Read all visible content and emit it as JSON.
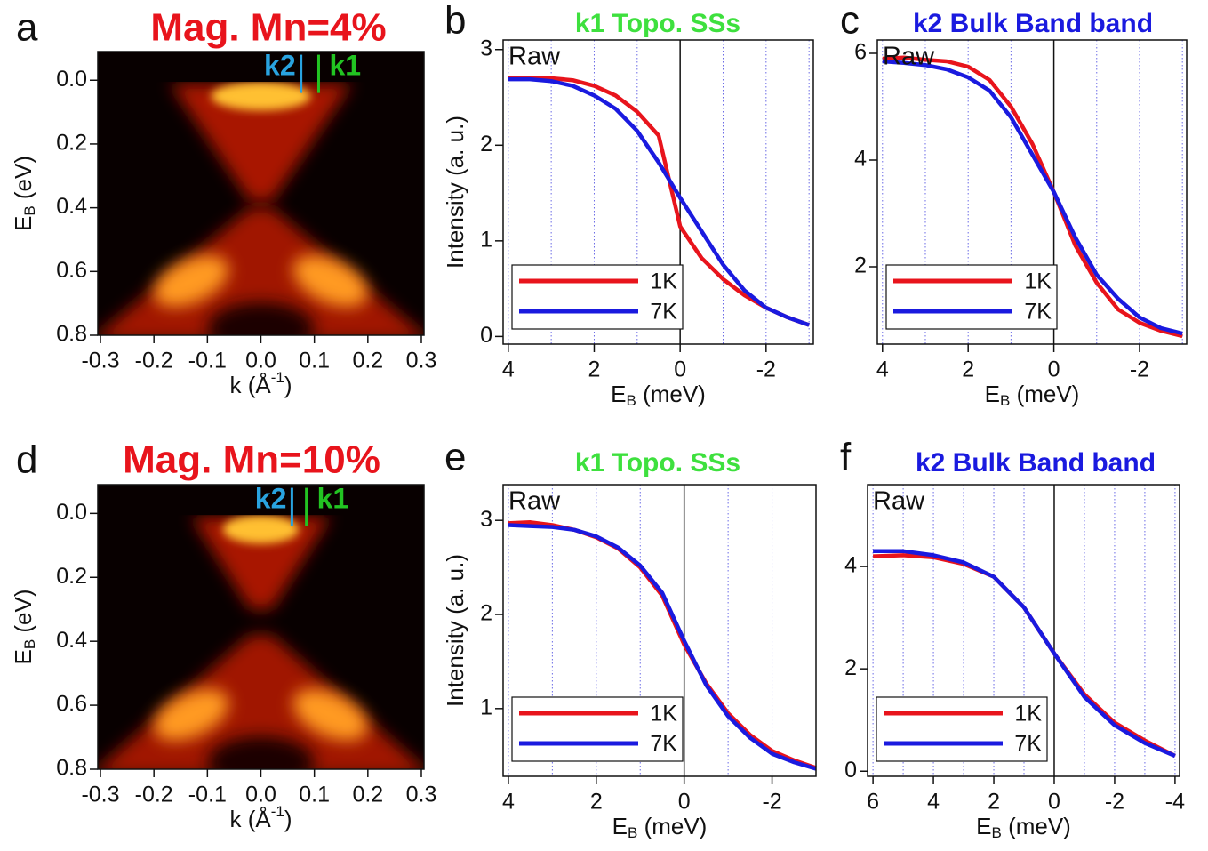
{
  "chart_data": [
    {
      "type": "heatmap",
      "panel": "a",
      "title": "Mag. Mn=4%",
      "title_color": "#e8141c",
      "xlabel_parts": [
        "k (Å",
        "-1",
        ")"
      ],
      "xlabel_script": "sup",
      "ylabel_parts": [
        "E",
        "B",
        " (eV)"
      ],
      "ylabel_script": "sub",
      "xlim": [
        -0.305,
        0.305
      ],
      "ylim": [
        0.8,
        -0.09
      ],
      "xticks": [
        -0.3,
        -0.2,
        -0.1,
        {
          "value": 0,
          "label": "0.0"
        },
        0.1,
        0.2,
        0.3
      ],
      "yticks": [
        {
          "value": 0,
          "label": "0.0"
        },
        0.2,
        0.4,
        0.6,
        0.8
      ],
      "markers": [
        {
          "name": "k2",
          "x": 0.075,
          "color": "#29a3e0"
        },
        {
          "name": "k1",
          "x": 0.108,
          "color": "#22c422"
        }
      ]
    },
    {
      "type": "line",
      "panel": "b",
      "title": "k1  Topo. SSs",
      "title_color": "#3ee03e",
      "xlabel_parts": [
        "E",
        "B",
        " (meV)"
      ],
      "xlabel_script": "sub",
      "ylabel": "Intensity (a. u.)",
      "annotation": "Raw",
      "xlim": [
        4.12,
        -3.1
      ],
      "ylim": [
        -0.08,
        3.1
      ],
      "xticks": [
        4,
        2,
        0,
        -2
      ],
      "yticks": [
        0,
        1,
        2,
        3
      ],
      "minor_xticks": [
        4,
        3,
        2,
        1,
        -1,
        -2,
        -3
      ],
      "vline_x": 0,
      "legend": "lower left",
      "x": [
        4,
        3.5,
        3,
        2.5,
        2,
        1.5,
        1,
        0.5,
        0,
        -0.5,
        -1,
        -1.5,
        -2,
        -2.5,
        -3
      ],
      "series": [
        {
          "name": "1K",
          "color": "#e8141c",
          "values": [
            2.7,
            2.7,
            2.7,
            2.68,
            2.62,
            2.52,
            2.35,
            2.1,
            1.15,
            0.82,
            0.6,
            0.43,
            0.3,
            0.2,
            0.12
          ]
        },
        {
          "name": "7K",
          "color": "#1a1adf",
          "values": [
            2.69,
            2.69,
            2.67,
            2.62,
            2.52,
            2.38,
            2.15,
            1.82,
            1.45,
            1.1,
            0.75,
            0.48,
            0.3,
            0.2,
            0.12
          ]
        }
      ]
    },
    {
      "type": "line",
      "panel": "c",
      "title": "k2  Bulk Band band",
      "title_color": "#1a1adf",
      "xlabel_parts": [
        "E",
        "B",
        " (meV)"
      ],
      "xlabel_script": "sub",
      "annotation": "Raw",
      "xlim": [
        4.12,
        -3.1
      ],
      "ylim": [
        0.55,
        6.25
      ],
      "xticks": [
        4,
        2,
        0,
        -2
      ],
      "yticks": [
        2,
        4,
        6
      ],
      "minor_xticks": [
        4,
        3,
        2,
        1,
        -1,
        -2,
        -3
      ],
      "vline_x": 0,
      "legend": "lower left",
      "x": [
        4,
        3.5,
        3,
        2.5,
        2,
        1.5,
        1,
        0.5,
        0,
        -0.5,
        -1,
        -1.5,
        -2,
        -2.5,
        -3
      ],
      "series": [
        {
          "name": "1K",
          "color": "#e8141c",
          "values": [
            5.9,
            5.92,
            5.88,
            5.85,
            5.75,
            5.5,
            5.0,
            4.3,
            3.4,
            2.4,
            1.7,
            1.2,
            0.95,
            0.8,
            0.7
          ]
        },
        {
          "name": "7K",
          "color": "#1a1adf",
          "values": [
            5.85,
            5.82,
            5.78,
            5.7,
            5.55,
            5.3,
            4.8,
            4.1,
            3.4,
            2.55,
            1.85,
            1.4,
            1.05,
            0.85,
            0.75
          ]
        }
      ]
    },
    {
      "type": "heatmap",
      "panel": "d",
      "title": "Mag. Mn=10%",
      "title_color": "#e8141c",
      "xlabel_parts": [
        "k (Å",
        "-1",
        ")"
      ],
      "xlabel_script": "sup",
      "ylabel_parts": [
        "E",
        "B",
        " (eV)"
      ],
      "ylabel_script": "sub",
      "xlim": [
        -0.305,
        0.305
      ],
      "ylim": [
        0.8,
        -0.09
      ],
      "xticks": [
        -0.3,
        -0.2,
        -0.1,
        {
          "value": 0,
          "label": "0.0"
        },
        0.1,
        0.2,
        0.3
      ],
      "yticks": [
        {
          "value": 0,
          "label": "0.0"
        },
        0.2,
        0.4,
        0.6,
        0.8
      ],
      "markers": [
        {
          "name": "k2",
          "x": 0.058,
          "color": "#29a3e0"
        },
        {
          "name": "k1",
          "x": 0.085,
          "color": "#22c422"
        }
      ]
    },
    {
      "type": "line",
      "panel": "e",
      "title": "k1  Topo. SSs",
      "title_color": "#3ee03e",
      "xlabel_parts": [
        "E",
        "B",
        " (meV)"
      ],
      "xlabel_script": "sub",
      "ylabel": "Intensity (a. u.)",
      "annotation": "Raw",
      "xlim": [
        4.12,
        -3.0
      ],
      "ylim": [
        0.28,
        3.38
      ],
      "xticks": [
        4,
        2,
        0,
        -2
      ],
      "yticks": [
        1,
        2,
        3
      ],
      "minor_xticks": [
        4,
        3,
        2,
        1,
        -1,
        -2,
        -3
      ],
      "vline_x": 0,
      "legend": "lower left",
      "x": [
        4,
        3.5,
        3,
        2.5,
        2,
        1.5,
        1,
        0.5,
        0,
        -0.5,
        -1,
        -1.5,
        -2,
        -2.5,
        -3
      ],
      "series": [
        {
          "name": "1K",
          "color": "#e8141c",
          "values": [
            2.97,
            2.98,
            2.95,
            2.9,
            2.82,
            2.7,
            2.5,
            2.2,
            1.68,
            1.27,
            0.95,
            0.72,
            0.55,
            0.45,
            0.37
          ]
        },
        {
          "name": "7K",
          "color": "#1a1adf",
          "values": [
            2.95,
            2.94,
            2.93,
            2.9,
            2.83,
            2.71,
            2.52,
            2.23,
            1.72,
            1.25,
            0.92,
            0.69,
            0.52,
            0.43,
            0.36
          ]
        }
      ]
    },
    {
      "type": "line",
      "panel": "f",
      "title": "k2  Bulk Band band",
      "title_color": "#1a1adf",
      "xlabel_parts": [
        "E",
        "B",
        " (meV)"
      ],
      "xlabel_script": "sub",
      "annotation": "Raw",
      "xlim": [
        6.18,
        -4.15
      ],
      "ylim": [
        -0.1,
        5.6
      ],
      "xticks": [
        6,
        4,
        2,
        0,
        -2,
        -4
      ],
      "yticks": [
        0,
        2,
        4
      ],
      "minor_xticks": [
        6,
        5,
        4,
        3,
        2,
        1,
        -1,
        -2,
        -3,
        -4
      ],
      "vline_x": 0,
      "legend": "lower left",
      "x": [
        6,
        5,
        4,
        3,
        2,
        1,
        0,
        -1,
        -2,
        -3,
        -4
      ],
      "series": [
        {
          "name": "1K",
          "color": "#e8141c",
          "values": [
            4.2,
            4.22,
            4.18,
            4.05,
            3.8,
            3.2,
            2.3,
            1.5,
            0.95,
            0.6,
            0.3
          ]
        },
        {
          "name": "7K",
          "color": "#1a1adf",
          "values": [
            4.3,
            4.3,
            4.22,
            4.08,
            3.8,
            3.2,
            2.3,
            1.45,
            0.9,
            0.55,
            0.3
          ]
        }
      ]
    }
  ]
}
